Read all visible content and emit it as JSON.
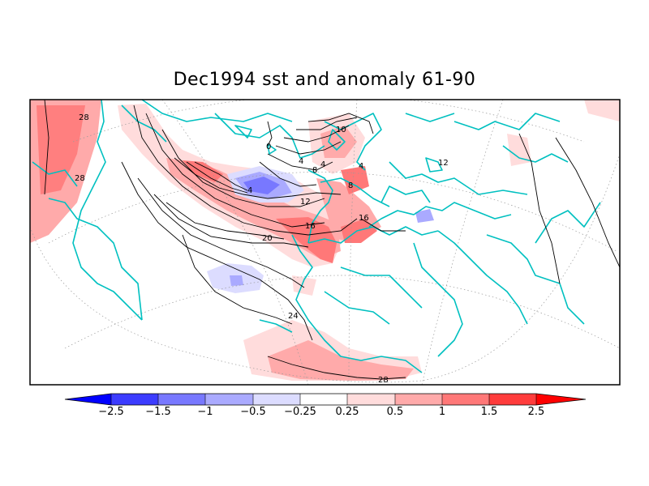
{
  "title": "Dec1994 sst and anomaly 61-90",
  "colorbar": {
    "tick_labels": [
      "−2.5",
      "−1.5",
      "−1",
      "−0.5",
      "−0.25",
      "0.25",
      "0.5",
      "1",
      "1.5",
      "2.5"
    ],
    "colors": [
      "#0000ff",
      "#3c3cff",
      "#7878ff",
      "#aaaaff",
      "#dcdcff",
      "#ffffff",
      "#ffdcdc",
      "#ffaaaa",
      "#ff7878",
      "#ff3c3c",
      "#ff0000"
    ]
  },
  "contour_labels": [
    "28",
    "28",
    "0",
    "4",
    "4",
    "8",
    "10",
    "4",
    "4",
    "8",
    "12",
    "16",
    "16",
    "20",
    "24",
    "28",
    "12"
  ],
  "map_colors": {
    "coast": "#00c0c0",
    "contour": "#000000",
    "frame": "#000000"
  }
}
